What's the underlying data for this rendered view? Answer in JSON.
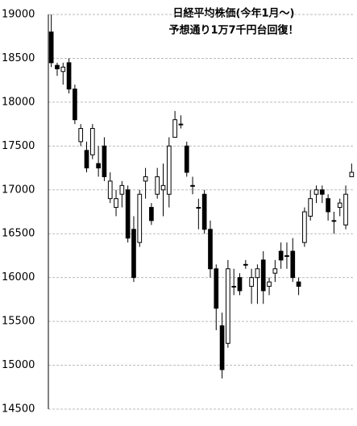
{
  "chart_data": {
    "type": "candlestick",
    "title": "日経平均株価(今年1月～)",
    "subtitle": "予想通り1万7千円台回復！",
    "categories": [
      null,
      null,
      null,
      null,
      null,
      null,
      null,
      null,
      null,
      null,
      null,
      null,
      null,
      null,
      null,
      null,
      null,
      null,
      null,
      null,
      null,
      null,
      null,
      null,
      null,
      null,
      null,
      null,
      null,
      null,
      null,
      null,
      null,
      null,
      null,
      null,
      null,
      null,
      null,
      null,
      null,
      null,
      null,
      null,
      null,
      null,
      null,
      null,
      null,
      null,
      null,
      null
    ],
    "open": [
      18800,
      18420,
      18350,
      18450,
      18150,
      17550,
      17450,
      17400,
      17300,
      17500,
      16900,
      16800,
      16950,
      17000,
      16550,
      16400,
      17100,
      16800,
      16950,
      17000,
      16950,
      17600,
      17750,
      17500,
      17050,
      16800,
      16950,
      16550,
      16100,
      15450,
      15250,
      15900,
      16000,
      16150,
      15900,
      16000,
      16200,
      15900,
      16050,
      16300,
      16250,
      16300,
      15950,
      16400,
      16700,
      16950,
      17000,
      16900,
      16650,
      16800,
      16600,
      17150
    ],
    "high": [
      19000,
      18450,
      18450,
      18500,
      18200,
      17750,
      17550,
      17750,
      17500,
      17600,
      17200,
      17000,
      17100,
      17050,
      16700,
      17000,
      17250,
      16850,
      17250,
      17300,
      17600,
      17900,
      17850,
      17550,
      17150,
      16900,
      17000,
      16650,
      16150,
      15600,
      16200,
      16100,
      16050,
      16200,
      16100,
      16150,
      16300,
      16000,
      16200,
      16400,
      16400,
      16450,
      16000,
      16800,
      17000,
      17050,
      17050,
      16950,
      16750,
      16900,
      17050,
      17300
    ],
    "low": [
      18400,
      18300,
      18200,
      18100,
      17750,
      17500,
      17200,
      17350,
      17150,
      17100,
      16850,
      16700,
      16800,
      16400,
      15950,
      16350,
      16900,
      16600,
      16900,
      16700,
      16800,
      17600,
      17700,
      17150,
      16950,
      16550,
      16500,
      16000,
      15400,
      14850,
      15200,
      15800,
      15800,
      16100,
      15700,
      15700,
      15700,
      15800,
      15950,
      16100,
      16100,
      15950,
      15800,
      16350,
      16650,
      16850,
      16850,
      16650,
      16500,
      16700,
      16550,
      17150
    ],
    "close": [
      18450,
      18380,
      18400,
      18150,
      17800,
      17700,
      17250,
      17700,
      17250,
      17150,
      17100,
      16900,
      17050,
      16450,
      16000,
      16950,
      17150,
      16650,
      17150,
      17050,
      17500,
      17800,
      17750,
      17200,
      17050,
      16800,
      16550,
      16100,
      15650,
      14950,
      16100,
      15900,
      15850,
      16150,
      16000,
      16100,
      15850,
      15950,
      16100,
      16200,
      16250,
      16000,
      15900,
      16750,
      16900,
      17000,
      16950,
      16750,
      16650,
      16850,
      16950,
      17200
    ],
    "up_color": "#ffffff",
    "down_color": "#000000",
    "edge_color": "#000000",
    "ylim": [
      14500,
      19000
    ],
    "yticks": [
      14500,
      15000,
      15500,
      16000,
      16500,
      17000,
      17500,
      18000,
      18500,
      19000
    ],
    "grid": true
  }
}
